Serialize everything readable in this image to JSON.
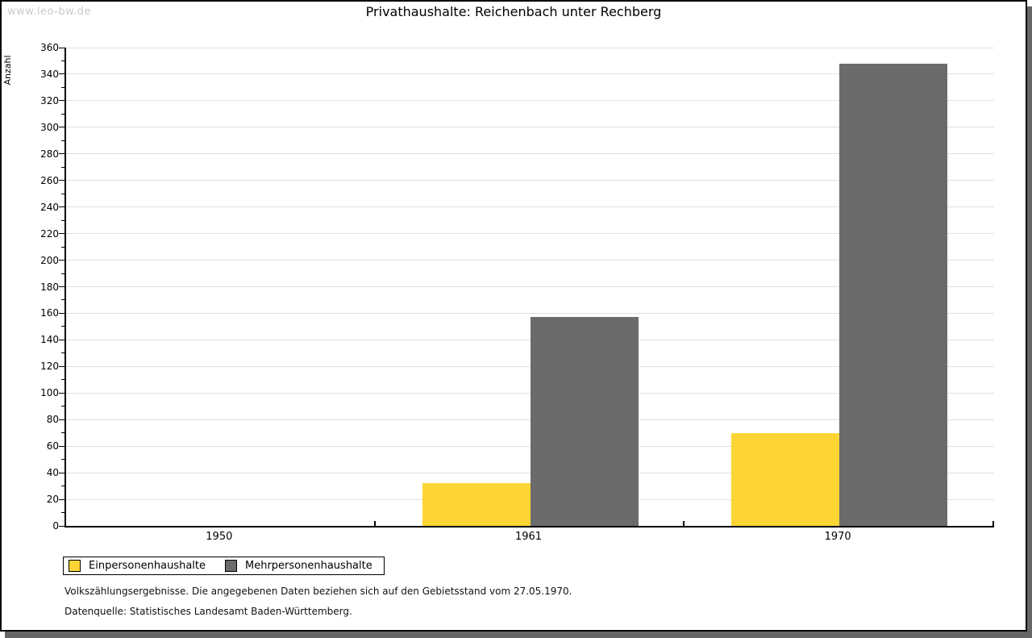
{
  "watermark": "www.leo-bw.de",
  "title": "Privathaushalte: Reichenbach unter Rechberg",
  "chart_data": {
    "type": "bar",
    "title": "Privathaushalte: Reichenbach unter Rechberg",
    "categories": [
      "1950",
      "1961",
      "1970"
    ],
    "series": [
      {
        "name": "Einpersonenhaushalte",
        "color": "#FCD535",
        "values": [
          0,
          32,
          70
        ]
      },
      {
        "name": "Mehrpersonenhaushalte",
        "color": "#6B6B6B",
        "values": [
          0,
          157,
          348
        ]
      }
    ],
    "xlabel": "",
    "ylabel": "Anzahl",
    "ylim": [
      0,
      360
    ],
    "y_major_step": 20,
    "y_minor_step": 10,
    "y_ticks": [
      0,
      20,
      40,
      60,
      80,
      100,
      120,
      140,
      160,
      180,
      200,
      220,
      240,
      260,
      280,
      300,
      320,
      340,
      360
    ],
    "grid": true,
    "legend_position": "bottom-left"
  },
  "footer": {
    "line1": "Volkszählungsergebnisse. Die angegebenen Daten beziehen sich auf den Gebietsstand vom 27.05.1970.",
    "line2": "Datenquelle: Statistisches Landesamt Baden-Württemberg."
  },
  "colors": {
    "grid": "#E0E0E0",
    "axis": "#000000",
    "frame_border": "#000000",
    "frame_shadow": "#666666",
    "watermark": "#C9C9C9"
  }
}
